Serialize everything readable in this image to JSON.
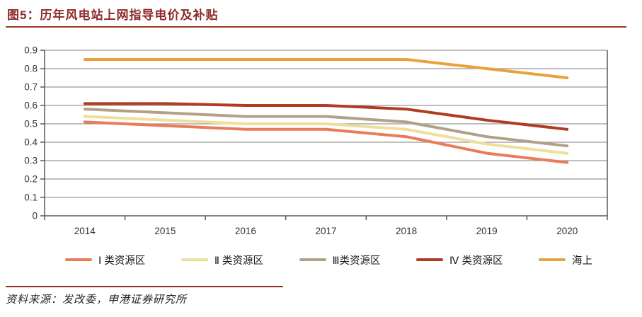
{
  "figure": {
    "title": "图5：历年风电站上网指导电价及补贴",
    "source": "资料来源：发改委，申港证券研究所"
  },
  "chart_data": {
    "type": "line",
    "title": "历年风电站上网指导电价及补贴",
    "xlabel": "",
    "ylabel": "",
    "categories": [
      "2014",
      "2015",
      "2016",
      "2017",
      "2018",
      "2019",
      "2020"
    ],
    "series": [
      {
        "name": "Ⅰ 类资源区",
        "color": "#e97c5b",
        "values": [
          0.51,
          0.49,
          0.47,
          0.47,
          0.43,
          0.34,
          0.29
        ]
      },
      {
        "name": "Ⅱ 类资源区",
        "color": "#eedf9b",
        "values": [
          0.54,
          0.52,
          0.5,
          0.5,
          0.47,
          0.39,
          0.34
        ]
      },
      {
        "name": "Ⅲ类资源区",
        "color": "#b2a089",
        "values": [
          0.58,
          0.56,
          0.54,
          0.54,
          0.51,
          0.43,
          0.38
        ]
      },
      {
        "name": "Ⅳ 类资源区",
        "color": "#b23b22",
        "values": [
          0.61,
          0.61,
          0.6,
          0.6,
          0.58,
          0.52,
          0.47
        ]
      },
      {
        "name": "海上",
        "color": "#e9a23b",
        "values": [
          0.85,
          0.85,
          0.85,
          0.85,
          0.85,
          0.8,
          0.75
        ]
      }
    ],
    "ylim": [
      0,
      0.9
    ],
    "ytick_step": 0.1,
    "ytick_labels": [
      "0",
      "0.1",
      "0.2",
      "0.3",
      "0.4",
      "0.5",
      "0.6",
      "0.7",
      "0.8",
      "0.9"
    ],
    "grid": true,
    "legend_position": "bottom"
  },
  "colors": {
    "title_text": "#8c2a28",
    "title_rule": "#a03a23",
    "source_rule": "#8b3222",
    "axis_line": "#595959",
    "grid_line": "#999999",
    "tick_text": "#333333"
  }
}
